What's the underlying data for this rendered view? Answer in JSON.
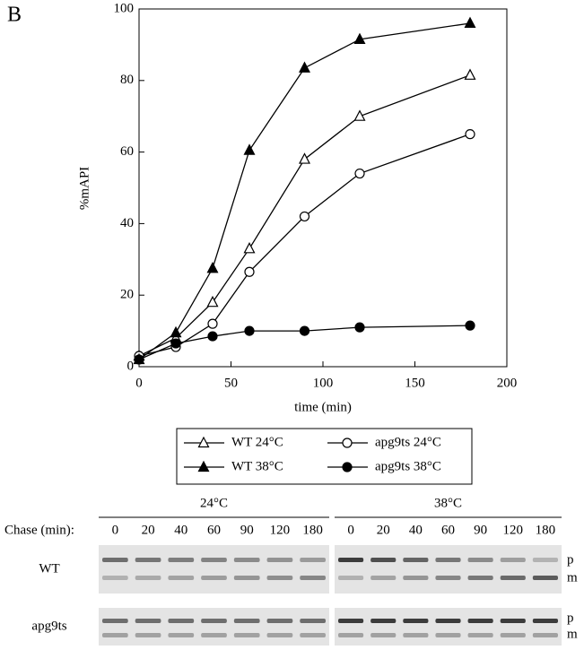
{
  "panel_label": "B",
  "chart_data": {
    "type": "line",
    "xlabel": "time (min)",
    "ylabel": "%mAPI",
    "x": [
      0,
      20,
      40,
      60,
      90,
      120,
      180
    ],
    "xlim": [
      0,
      200
    ],
    "xticks": [
      0,
      50,
      100,
      150,
      200
    ],
    "ylim": [
      0,
      100
    ],
    "yticks": [
      0,
      20,
      40,
      60,
      80,
      100
    ],
    "grid": false,
    "series": [
      {
        "name": "WT 24°C",
        "color": "#000000",
        "marker": "triangle-open",
        "values": [
          3,
          8,
          18,
          33,
          58,
          70,
          81.5
        ]
      },
      {
        "name": "apg9ts 24°C",
        "color": "#000000",
        "marker": "circle-open",
        "values": [
          3,
          5.5,
          12,
          26.5,
          42,
          54,
          65
        ]
      },
      {
        "name": "WT 38°C",
        "color": "#000000",
        "marker": "triangle-filled",
        "values": [
          2,
          9.5,
          27.5,
          60.5,
          83.5,
          91.5,
          96
        ]
      },
      {
        "name": "apg9ts 38°C",
        "color": "#000000",
        "marker": "circle-filled",
        "values": [
          2,
          6.5,
          8.5,
          10,
          10,
          11,
          11.5
        ]
      }
    ]
  },
  "blot": {
    "chase_label": "Chase (min):",
    "conditions": [
      "24°C",
      "38°C"
    ],
    "lanes": [
      "0",
      "20",
      "40",
      "60",
      "90",
      "120",
      "180"
    ],
    "rows": [
      "WT",
      "apg9ts"
    ],
    "bands": [
      "p",
      "m"
    ]
  }
}
